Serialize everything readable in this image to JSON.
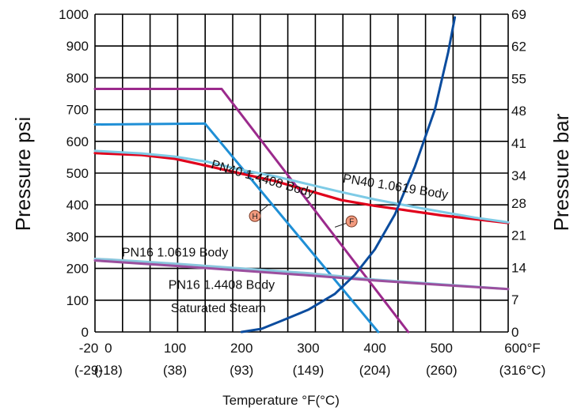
{
  "chart_data": {
    "type": "line",
    "xlabel": "Temperature °F(°C)",
    "ylabel_left": "Pressure psi",
    "ylabel_right": "Pressure bar",
    "xlim": [
      -20,
      600
    ],
    "ylim": [
      0,
      1000
    ],
    "grid": true,
    "x_ticks": [
      {
        "value": -20,
        "label": "-20",
        "sub": "(-29)"
      },
      {
        "value": 0,
        "label": "0",
        "sub": "(-18)"
      },
      {
        "value": 100,
        "label": "100",
        "sub": "(38)"
      },
      {
        "value": 200,
        "label": "200",
        "sub": "(93)"
      },
      {
        "value": 300,
        "label": "300",
        "sub": "(149)"
      },
      {
        "value": 400,
        "label": "400",
        "sub": "(204)"
      },
      {
        "value": 500,
        "label": "500",
        "sub": "(260)"
      },
      {
        "value": 600,
        "label": "600°F",
        "sub": "(316°C)"
      }
    ],
    "y_ticks_left": [
      "0",
      "100",
      "200",
      "300",
      "400",
      "500",
      "600",
      "700",
      "800",
      "900",
      "1000"
    ],
    "y_ticks_right": [
      {
        "psi": 0,
        "label": "0"
      },
      {
        "psi": 101.5,
        "label": "7"
      },
      {
        "psi": 203,
        "label": "14"
      },
      {
        "psi": 304.5,
        "label": "21"
      },
      {
        "psi": 406,
        "label": "28"
      },
      {
        "psi": 493,
        "label": "34"
      },
      {
        "psi": 594.5,
        "label": "41"
      },
      {
        "psi": 696,
        "label": "48"
      },
      {
        "psi": 797.5,
        "label": "55"
      },
      {
        "psi": 899,
        "label": "62"
      },
      {
        "psi": 1000.5,
        "label": "69"
      }
    ],
    "series": [
      {
        "color": "#9b2a8c",
        "x": [
          -20,
          170,
          450
        ],
        "y": [
          765,
          765,
          0
        ]
      },
      {
        "color": "#1f8fd6",
        "x": [
          -20,
          145,
          405
        ],
        "y": [
          653,
          656,
          0
        ]
      },
      {
        "color": "#e0001b",
        "x": [
          -20,
          50,
          100,
          150,
          200,
          250,
          300,
          350,
          400,
          450,
          500,
          550,
          600
        ],
        "y": [
          563,
          557,
          545,
          522,
          498,
          475,
          445,
          415,
          397,
          382,
          367,
          355,
          343
        ]
      },
      {
        "color": "#7ecbe6",
        "x": [
          -20,
          50,
          100,
          150,
          200,
          250,
          300,
          350,
          400,
          450,
          500,
          550,
          600
        ],
        "y": [
          570,
          562,
          552,
          535,
          510,
          490,
          465,
          440,
          417,
          397,
          378,
          360,
          345
        ]
      },
      {
        "color": "#8ac6dd",
        "x": [
          -20,
          0,
          100,
          200,
          300,
          400,
          500,
          600
        ],
        "y": [
          230,
          228,
          215,
          200,
          185,
          165,
          150,
          135
        ]
      },
      {
        "color": "#9b4f9e",
        "x": [
          -20,
          0,
          100,
          200,
          300,
          400,
          500,
          600
        ],
        "y": [
          225,
          222,
          208,
          193,
          178,
          162,
          148,
          135
        ]
      },
      {
        "color": "#0b4c9e",
        "x": [
          200,
          230,
          260,
          300,
          340,
          370,
          400,
          430,
          460,
          490,
          510,
          520
        ],
        "y": [
          0,
          10,
          35,
          70,
          120,
          180,
          260,
          370,
          520,
          700,
          880,
          990
        ]
      }
    ],
    "annotations": [
      {
        "text": "PN40  1.4408 Body",
        "x": 230,
        "y": 470,
        "rotate": 16
      },
      {
        "text": "PN40   1.0619 Body",
        "x": 430,
        "y": 445,
        "rotate": 9
      },
      {
        "text": "PN16 1.0619 Body",
        "x": 100,
        "y": 237,
        "rotate": 0
      },
      {
        "text": "PN16  1.4408 Body",
        "x": 170,
        "y": 135,
        "rotate": 0
      },
      {
        "text": "Saturated Steam",
        "x": 165,
        "y": 62,
        "rotate": 0
      }
    ],
    "markers": [
      {
        "label": "H",
        "x": 220,
        "y": 365,
        "color": "#f29a7e",
        "lx": 240,
        "ly": 400
      },
      {
        "label": "F",
        "x": 365,
        "y": 348,
        "color": "#f29a7e",
        "lx": 340,
        "ly": 330
      }
    ]
  }
}
